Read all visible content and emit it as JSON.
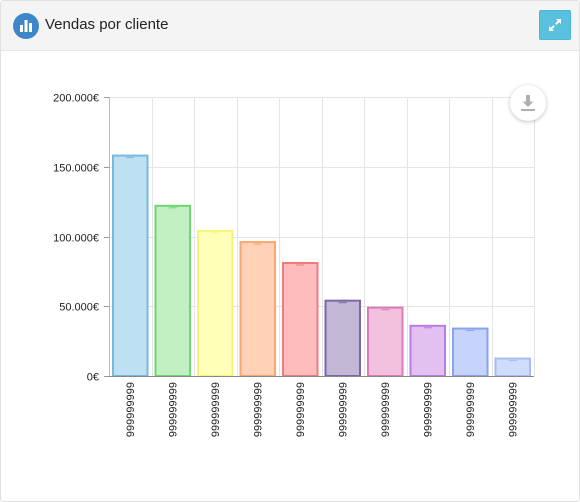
{
  "header": {
    "title": "Vendas por cliente"
  },
  "icons": {
    "header": "bar-chart-icon",
    "expand": "expand-icon",
    "download": "download-icon"
  },
  "colors": {
    "header_icon_bg": "#3f86c9",
    "expand_bg": "#5bc0de"
  },
  "chart_data": {
    "type": "bar",
    "categories": [
      "666666666",
      "666666666",
      "666666666",
      "666666666",
      "666666666",
      "666666666",
      "666666666",
      "666666666",
      "666666666",
      "666666666"
    ],
    "values": [
      158000,
      122000,
      104000,
      96000,
      81000,
      54000,
      49000,
      36000,
      34000,
      12500
    ],
    "ylim": [
      0,
      200000
    ],
    "yticks": [
      0,
      50000,
      100000,
      150000,
      200000
    ],
    "ytick_labels": [
      "0€",
      "50.000€",
      "100.000€",
      "150.000€",
      "200.000€"
    ],
    "grid": true,
    "legend": "none",
    "bar_fills": [
      "#bde0f2",
      "#c2f0c2",
      "#ffffb8",
      "#ffd2b8",
      "#ffbcbc",
      "#c3b7d6",
      "#f0c0dc",
      "#e2c0f0",
      "#c6d3fb",
      "#d0dcfc"
    ],
    "bar_strokes": [
      "#79b9dc",
      "#6fd56f",
      "#f4f47c",
      "#f9a772",
      "#f17a7a",
      "#7a68a6",
      "#dc7cb6",
      "#b97ce0",
      "#8aa3ef",
      "#a8bbf4"
    ]
  }
}
